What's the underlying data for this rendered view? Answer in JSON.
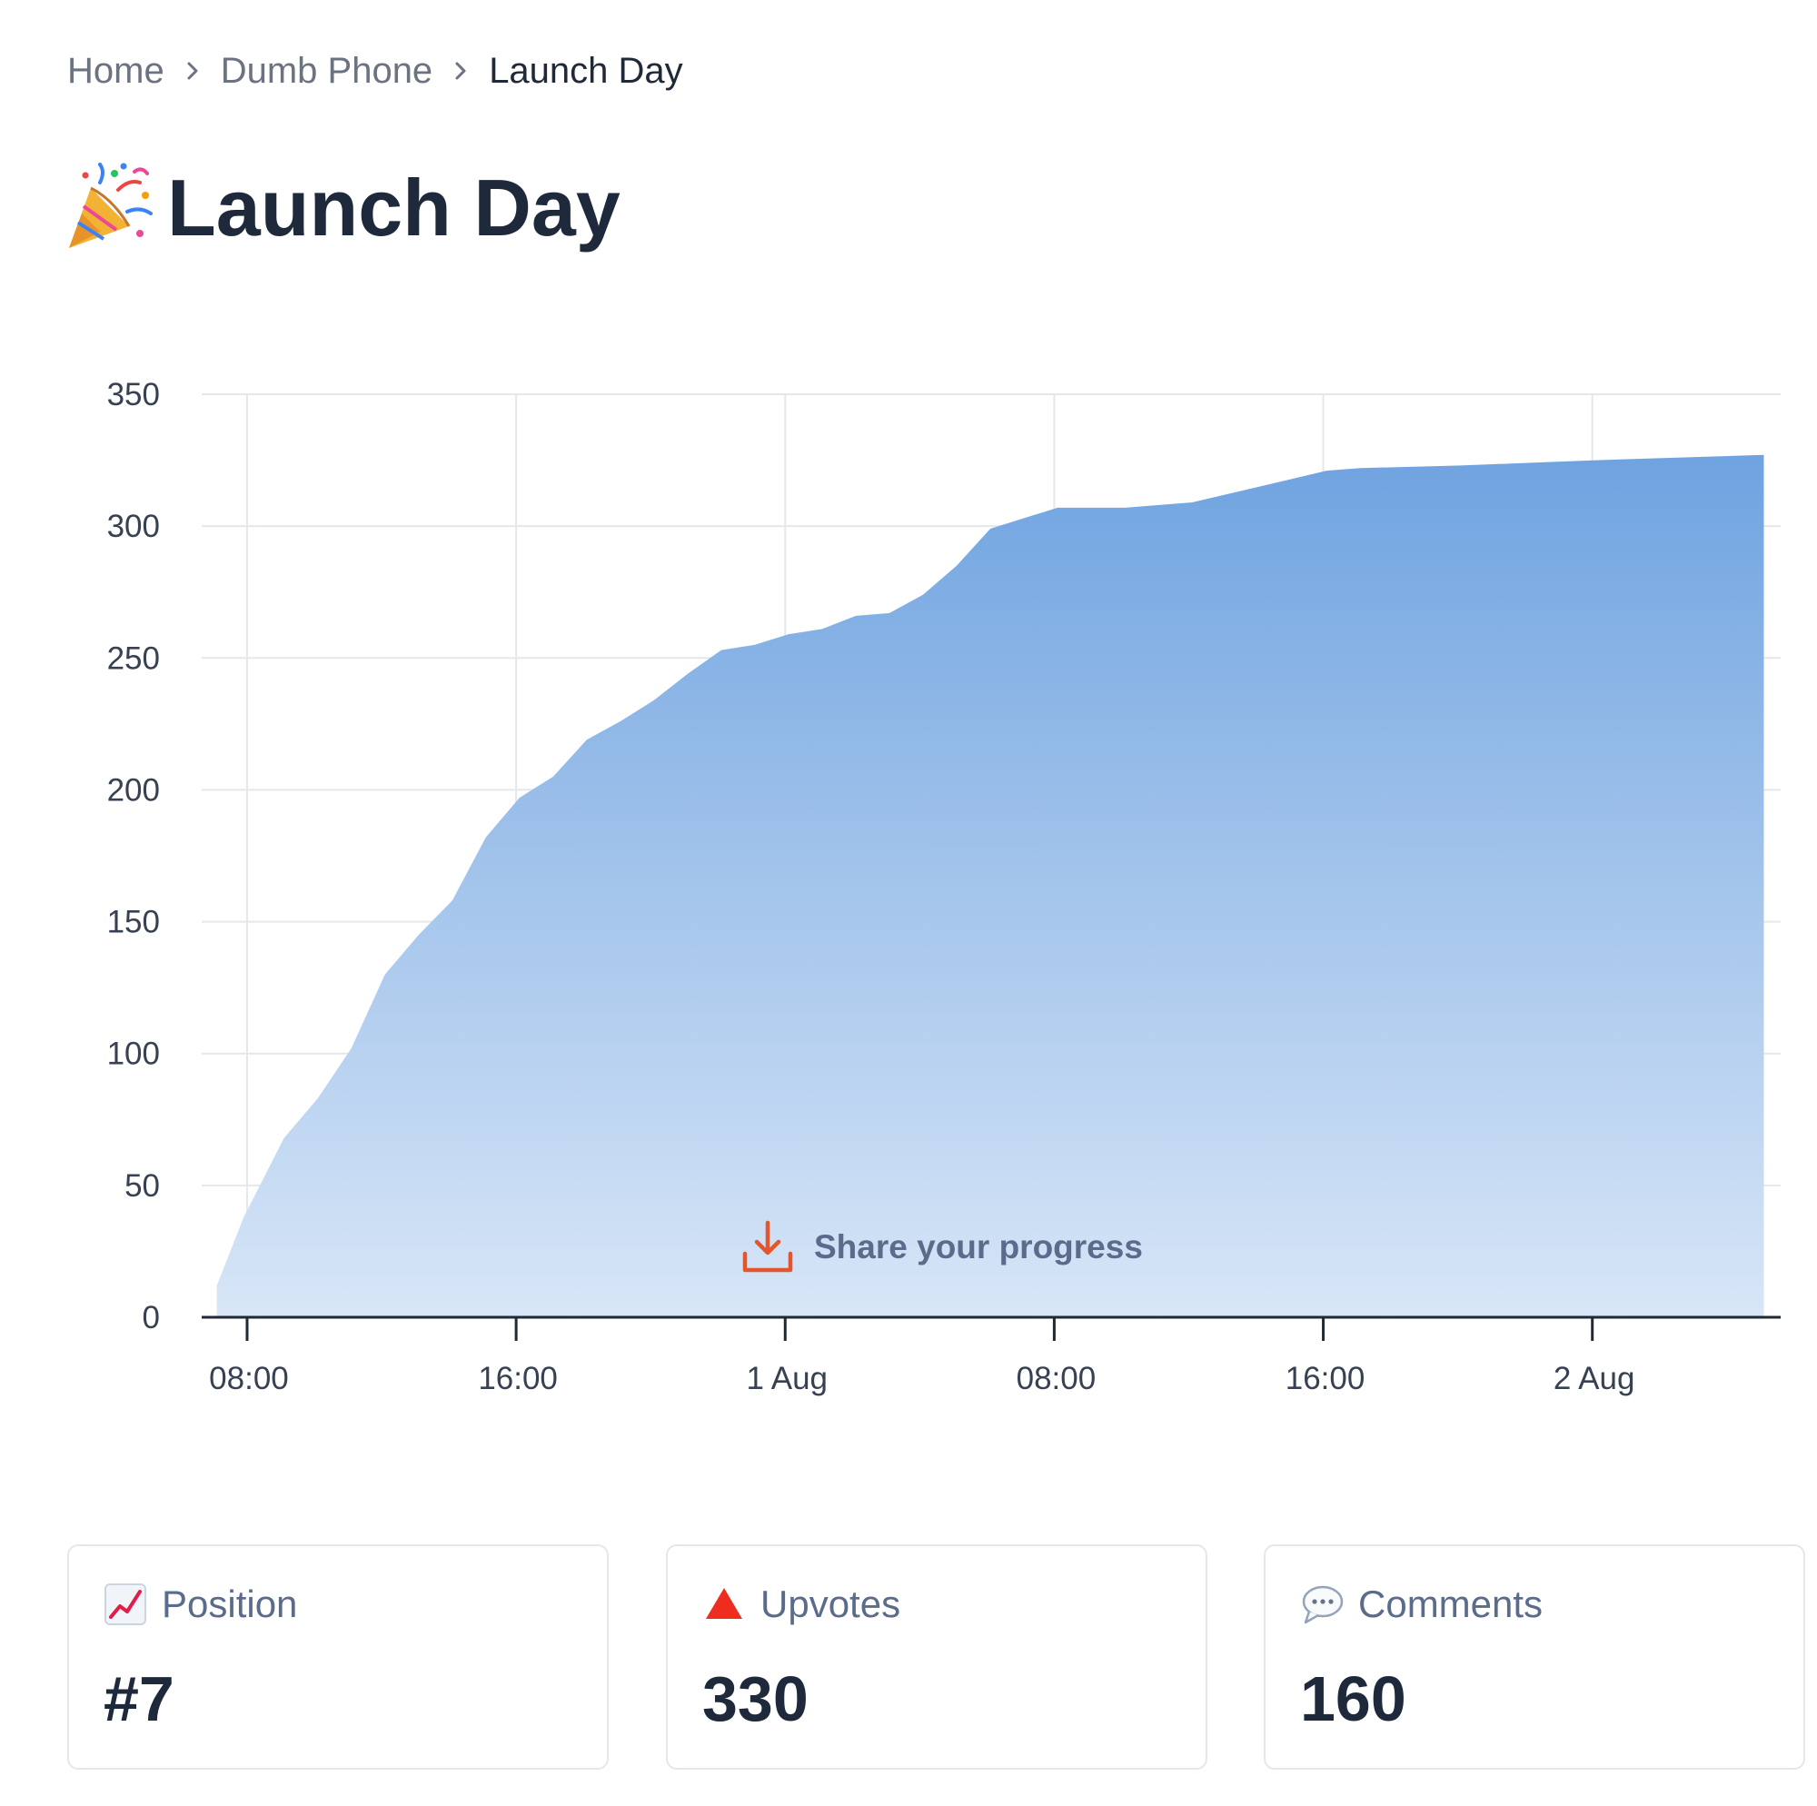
{
  "breadcrumb": {
    "items": [
      "Home",
      "Dumb Phone",
      "Launch Day"
    ]
  },
  "page": {
    "title": "Launch Day",
    "title_icon": "party-popper-icon"
  },
  "share": {
    "label": "Share your progress",
    "icon": "download-icon",
    "color": "#e2552d"
  },
  "stats": [
    {
      "label": "Position",
      "value": "#7",
      "icon": "chart-increasing-icon"
    },
    {
      "label": "Upvotes",
      "value": "330",
      "icon": "red-triangle-icon"
    },
    {
      "label": "Comments",
      "value": "160",
      "icon": "speech-bubble-icon"
    }
  ],
  "chart_data": {
    "type": "area",
    "title": "",
    "xlabel": "",
    "ylabel": "",
    "x_unit": "hours",
    "x_ticks": [
      {
        "label": "08:00",
        "hour": 8
      },
      {
        "label": "16:00",
        "hour": 16
      },
      {
        "label": "1 Aug",
        "hour": 24
      },
      {
        "label": "08:00",
        "hour": 32
      },
      {
        "label": "16:00",
        "hour": 40
      },
      {
        "label": "2 Aug",
        "hour": 48
      }
    ],
    "xlim": [
      6.65,
      53.6
    ],
    "ylim": [
      0,
      350
    ],
    "y_ticks": [
      0,
      50,
      100,
      150,
      200,
      250,
      300,
      350
    ],
    "grid": true,
    "fill_color": "#6fa3e0",
    "series": [
      {
        "x": [
          7.1,
          7.9,
          9.1,
          10.1,
          11.1,
          12.1,
          13.1,
          14.1,
          15.1,
          16.1,
          17.1,
          18.1,
          19.1,
          20.1,
          21.1,
          22.1,
          23.1,
          24.1,
          25.1,
          26.1,
          27.1,
          28.1,
          29.1,
          30.1,
          31.1,
          32.1,
          34.1,
          36.1,
          38.1,
          40.1,
          41.1,
          44.1,
          48.1,
          53.1
        ],
        "y": [
          12,
          38,
          68,
          83,
          102,
          130,
          145,
          158,
          182,
          197,
          205,
          219,
          226,
          234,
          244,
          253,
          255,
          259,
          261,
          266,
          267,
          274,
          285,
          299,
          303,
          307,
          307,
          309,
          315,
          321,
          322,
          323,
          325,
          327
        ]
      }
    ]
  }
}
